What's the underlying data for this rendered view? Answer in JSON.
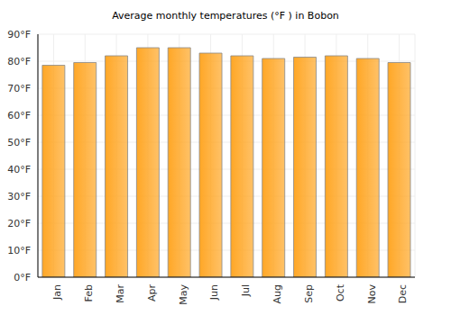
{
  "chart_data": {
    "type": "bar",
    "title": "Average monthly temperatures (°F ) in Bobon",
    "categories": [
      "Jan",
      "Feb",
      "Mar",
      "Apr",
      "May",
      "Jun",
      "Jul",
      "Aug",
      "Sep",
      "Oct",
      "Nov",
      "Dec"
    ],
    "values": [
      78.5,
      79.5,
      82,
      85,
      85,
      83,
      82,
      81,
      81.5,
      82,
      81,
      79.5
    ],
    "color": "#ffa726",
    "ylim": [
      0,
      90
    ],
    "yticks": [
      {
        "value": 0,
        "label": "0°F"
      },
      {
        "value": 10,
        "label": "10°F"
      },
      {
        "value": 20,
        "label": "20°F"
      },
      {
        "value": 30,
        "label": "30°F"
      },
      {
        "value": 40,
        "label": "40°F"
      },
      {
        "value": 50,
        "label": "50°F"
      },
      {
        "value": 60,
        "label": "60°F"
      },
      {
        "value": 70,
        "label": "70°F"
      },
      {
        "value": 80,
        "label": "80°F"
      },
      {
        "value": 90,
        "label": "90°F"
      }
    ],
    "grid": true
  }
}
